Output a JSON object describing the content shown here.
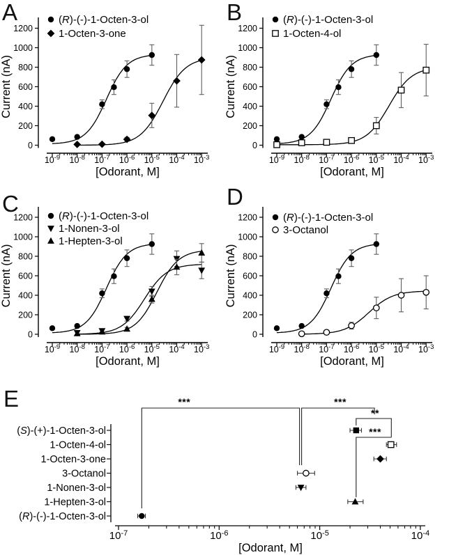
{
  "chart_data": {
    "type": "xy-log-dose-response-with-errorbars",
    "dose_axis": {
      "xlabel": "[Odorant, M]",
      "ylabel": "Current (nA)",
      "x_exponents": [
        -9,
        -8,
        -7,
        -6,
        -5,
        -4,
        -3
      ],
      "y_ticks": [
        0,
        200,
        400,
        600,
        800,
        1000,
        1200
      ],
      "ylim": [
        0,
        1300
      ],
      "grid": false
    },
    "dose_panels": [
      {
        "letter": "A",
        "series": [
          {
            "name": "(R)-(-)-1-Octen-3-ol",
            "marker": "circle",
            "x": [
              1e-09,
              1e-08,
              1e-07,
              3e-07,
              1e-06,
              1e-05
            ],
            "y": [
              62,
              85,
              420,
              595,
              780,
              925
            ],
            "err": [
              0,
              0,
              45,
              75,
              85,
              105
            ],
            "fit": {
              "base": 12,
              "span": 920,
              "ec50": 1.5e-07,
              "hill": 1.05
            }
          },
          {
            "name": "1-Octen-3-one",
            "marker": "diamond",
            "x": [
              1e-08,
              1e-07,
              1e-06,
              1e-05,
              0.0001,
              0.001
            ],
            "y": [
              8,
              10,
              60,
              305,
              660,
              875
            ],
            "err": [
              0,
              0,
              20,
              125,
              270,
              355
            ],
            "fit": {
              "base": 0,
              "span": 900,
              "ec50": 2.8e-05,
              "hill": 0.95
            }
          }
        ]
      },
      {
        "letter": "B",
        "series": [
          {
            "name": "(R)-(-)-1-Octen-3-ol",
            "marker": "circle",
            "x": [
              1e-09,
              1e-08,
              1e-07,
              3e-07,
              1e-06,
              1e-05
            ],
            "y": [
              62,
              85,
              420,
              595,
              780,
              925
            ],
            "err": [
              0,
              0,
              45,
              75,
              85,
              105
            ],
            "fit": {
              "base": 12,
              "span": 920,
              "ec50": 1.5e-07,
              "hill": 1.05
            }
          },
          {
            "name": "1-Octen-4-ol",
            "marker": "square-open",
            "x": [
              1e-09,
              1e-08,
              1e-07,
              1e-06,
              1e-05,
              0.0001,
              0.001
            ],
            "y": [
              5,
              25,
              30,
              48,
              200,
              565,
              770
            ],
            "err": [
              0,
              0,
              12,
              15,
              85,
              180,
              265
            ],
            "fit": {
              "base": 5,
              "span": 795,
              "ec50": 3.2e-05,
              "hill": 0.95
            }
          }
        ]
      },
      {
        "letter": "C",
        "series": [
          {
            "name": "(R)-(-)-1-Octen-3-ol",
            "marker": "circle",
            "x": [
              1e-09,
              1e-08,
              1e-07,
              3e-07,
              1e-06,
              1e-05
            ],
            "y": [
              62,
              85,
              420,
              595,
              780,
              925
            ],
            "err": [
              0,
              0,
              45,
              75,
              85,
              105
            ],
            "fit": {
              "base": 12,
              "span": 920,
              "ec50": 1.5e-07,
              "hill": 1.05
            }
          },
          {
            "name": "1-Nonen-3-ol",
            "marker": "tri-down",
            "x": [
              1e-08,
              1e-07,
              1e-06,
              1e-05,
              0.0001,
              0.001
            ],
            "y": [
              15,
              35,
              160,
              440,
              775,
              655
            ],
            "err": [
              0,
              10,
              25,
              50,
              80,
              85
            ],
            "fit": {
              "base": 0,
              "span": 720,
              "ec50": 5e-06,
              "hill": 0.95
            }
          },
          {
            "name": "1-Hepten-3-ol",
            "marker": "tri-up",
            "x": [
              1e-08,
              1e-07,
              1e-06,
              1e-05,
              0.0001,
              0.001
            ],
            "y": [
              8,
              25,
              55,
              360,
              690,
              835
            ],
            "err": [
              0,
              0,
              15,
              40,
              80,
              95
            ],
            "fit": {
              "base": 0,
              "span": 865,
              "ec50": 1.6e-05,
              "hill": 1.0
            }
          }
        ]
      },
      {
        "letter": "D",
        "series": [
          {
            "name": "(R)-(-)-1-Octen-3-ol",
            "marker": "circle",
            "x": [
              1e-09,
              1e-08,
              1e-07,
              3e-07,
              1e-06,
              1e-05
            ],
            "y": [
              62,
              85,
              420,
              595,
              780,
              925
            ],
            "err": [
              0,
              0,
              45,
              75,
              85,
              105
            ],
            "fit": {
              "base": 12,
              "span": 920,
              "ec50": 1.5e-07,
              "hill": 1.05
            }
          },
          {
            "name": "3-Octanol",
            "marker": "circle-open",
            "x": [
              1e-08,
              1e-07,
              1e-06,
              1e-05,
              0.0001,
              0.001
            ],
            "y": [
              5,
              20,
              88,
              270,
              400,
              430
            ],
            "err": [
              0,
              0,
              35,
              110,
              170,
              170
            ],
            "fit": {
              "base": 0,
              "span": 445,
              "ec50": 5e-06,
              "hill": 0.9
            }
          }
        ]
      }
    ],
    "panel_e": {
      "letter": "E",
      "type": "ec50-summary-errorbar",
      "xlabel": "[Odorant, M]",
      "x_exponents": [
        -7,
        -6,
        -5,
        -4
      ],
      "rows": [
        {
          "label": "(S)-(+)-1-Octen-3-ol",
          "marker": "square",
          "ec50": 2.3e-05,
          "lo": 2e-05,
          "hi": 2.6e-05
        },
        {
          "label": "1-Octen-4-ol",
          "marker": "square-open",
          "ec50": 5.1e-05,
          "lo": 4.6e-05,
          "hi": 5.8e-05
        },
        {
          "label": "1-Octen-3-one",
          "marker": "diamond",
          "ec50": 4e-05,
          "lo": 3.45e-05,
          "hi": 4.6e-05
        },
        {
          "label": "3-Octanol",
          "marker": "circle-open",
          "ec50": 7.3e-06,
          "lo": 6e-06,
          "hi": 8.9e-06
        },
        {
          "label": "1-Nonen-3-ol",
          "marker": "tri-down",
          "ec50": 6.5e-06,
          "lo": 5.8e-06,
          "hi": 7.3e-06
        },
        {
          "label": "1-Hepten-3-ol",
          "marker": "tri-up",
          "ec50": 2.25e-05,
          "lo": 1.9e-05,
          "hi": 2.7e-05
        },
        {
          "label": "(R)-(-)-1-Octen-3-ol",
          "marker": "circle",
          "ec50": 1.7e-07,
          "lo": 1.55e-07,
          "hi": 1.85e-07
        }
      ],
      "significance": [
        {
          "stars": "***",
          "points": [
            [
              1.7e-07,
              185
            ],
            [
              1.7e-07,
              41
            ],
            [
              6.3e-06,
              41
            ],
            [
              6.3e-06,
              123
            ]
          ],
          "star": [
            4.5e-07,
            37
          ]
        },
        {
          "stars": "***",
          "points": [
            [
              6.6e-06,
              123
            ],
            [
              6.6e-06,
              41
            ],
            [
              3.5e-05,
              41
            ],
            [
              3.5e-05,
              50
            ]
          ],
          "star": [
            1.6e-05,
            37
          ]
        },
        {
          "stars": "**",
          "points": [
            [
              2.3e-05,
              66
            ],
            [
              2.3e-05,
              56
            ],
            [
              5.15e-05,
              56
            ],
            [
              5.15e-05,
              83
            ]
          ],
          "star": [
            3.55e-05,
            53
          ]
        },
        {
          "stars": "***",
          "points": [
            [
              2.3e-05,
              169
            ],
            [
              2.3e-05,
              83
            ],
            [
              5.15e-05,
              83
            ]
          ],
          "star": [
            3.55e-05,
            80
          ]
        }
      ]
    },
    "colors": {
      "data": "#000000",
      "error_bar": "#5e5e5e",
      "bracket": "#222222",
      "background": "#ffffff"
    }
  }
}
